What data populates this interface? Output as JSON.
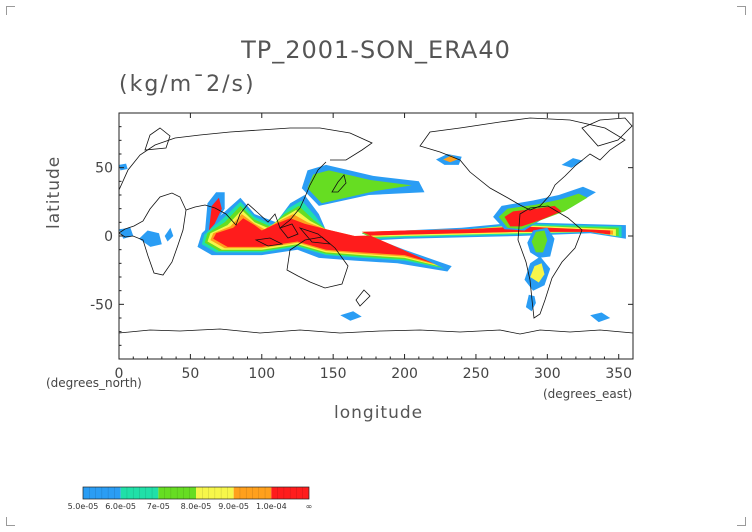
{
  "chart_data": {
    "type": "heatmap",
    "title": "TP_2001-SON_ERA40",
    "units": "(kg/m¯2/s)",
    "xlabel": "longitude",
    "ylabel": "latitude",
    "x_unit_label": "(degrees_east)",
    "y_unit_label": "(degrees_north)",
    "xlim": [
      0,
      360
    ],
    "ylim": [
      -90,
      90
    ],
    "x_ticks": [
      0,
      50,
      100,
      150,
      200,
      250,
      300,
      350
    ],
    "y_ticks": [
      -50,
      0,
      50
    ],
    "colorbar": {
      "levels": [
        "5.0e-05",
        "6.0e-05",
        "7e-05",
        "8.0e-05",
        "9.0e-05",
        "1.0e-04",
        "∞"
      ],
      "colors": [
        "#2a9df4",
        "#20e0a8",
        "#66dd22",
        "#f6f64a",
        "#ffa01c",
        "#ff1c1c"
      ]
    },
    "regions": [
      {
        "level": 1,
        "points": [
          [
            55,
            -8
          ],
          [
            65,
            -14
          ],
          [
            100,
            -14
          ],
          [
            125,
            -10
          ],
          [
            140,
            -16
          ],
          [
            165,
            -18
          ],
          [
            195,
            -20
          ],
          [
            230,
            -26
          ],
          [
            233,
            -22
          ],
          [
            200,
            -10
          ],
          [
            170,
            2
          ],
          [
            200,
            4
          ],
          [
            240,
            6
          ],
          [
            280,
            10
          ],
          [
            355,
            8
          ],
          [
            355,
            -2
          ],
          [
            330,
            2
          ],
          [
            280,
            0
          ],
          [
            200,
            -2
          ],
          [
            165,
            -4
          ],
          [
            145,
            4
          ],
          [
            140,
            16
          ],
          [
            130,
            30
          ],
          [
            120,
            24
          ],
          [
            110,
            10
          ],
          [
            95,
            16
          ],
          [
            85,
            28
          ],
          [
            70,
            14
          ],
          [
            58,
            2
          ]
        ]
      },
      {
        "level": 2,
        "points": [
          [
            58,
            -6
          ],
          [
            68,
            -12
          ],
          [
            100,
            -12
          ],
          [
            125,
            -8
          ],
          [
            145,
            -14
          ],
          [
            170,
            -16
          ],
          [
            200,
            -18
          ],
          [
            228,
            -24
          ],
          [
            198,
            -10
          ],
          [
            170,
            2
          ],
          [
            200,
            3
          ],
          [
            245,
            5
          ],
          [
            280,
            9
          ],
          [
            352,
            7
          ],
          [
            352,
            -1
          ],
          [
            330,
            3
          ],
          [
            280,
            1
          ],
          [
            200,
            -1
          ],
          [
            165,
            -3
          ],
          [
            145,
            4
          ],
          [
            138,
            14
          ],
          [
            128,
            26
          ],
          [
            118,
            20
          ],
          [
            108,
            8
          ],
          [
            95,
            14
          ],
          [
            85,
            25
          ],
          [
            72,
            12
          ],
          [
            60,
            2
          ]
        ]
      },
      {
        "level": 3,
        "points": [
          [
            60,
            -5
          ],
          [
            70,
            -11
          ],
          [
            100,
            -11
          ],
          [
            125,
            -7
          ],
          [
            145,
            -13
          ],
          [
            170,
            -15
          ],
          [
            200,
            -17
          ],
          [
            226,
            -23
          ],
          [
            196,
            -9
          ],
          [
            170,
            2
          ],
          [
            200,
            3
          ],
          [
            245,
            5
          ],
          [
            280,
            8
          ],
          [
            350,
            6
          ],
          [
            350,
            0
          ],
          [
            330,
            3
          ],
          [
            280,
            2
          ],
          [
            200,
            0
          ],
          [
            165,
            -2
          ],
          [
            145,
            5
          ],
          [
            136,
            12
          ],
          [
            126,
            22
          ],
          [
            116,
            16
          ],
          [
            106,
            7
          ],
          [
            95,
            12
          ],
          [
            85,
            22
          ],
          [
            74,
            10
          ],
          [
            62,
            2
          ]
        ]
      },
      {
        "level": 4,
        "points": [
          [
            62,
            -4
          ],
          [
            72,
            -10
          ],
          [
            100,
            -10
          ],
          [
            125,
            -6
          ],
          [
            145,
            -12
          ],
          [
            170,
            -14
          ],
          [
            200,
            -16
          ],
          [
            224,
            -22
          ],
          [
            194,
            -8
          ],
          [
            170,
            3
          ],
          [
            200,
            4
          ],
          [
            245,
            5
          ],
          [
            280,
            8
          ],
          [
            348,
            5
          ],
          [
            348,
            0
          ],
          [
            330,
            3
          ],
          [
            280,
            2
          ],
          [
            200,
            0
          ],
          [
            165,
            -1
          ],
          [
            145,
            5
          ],
          [
            134,
            11
          ],
          [
            124,
            19
          ],
          [
            114,
            13
          ],
          [
            104,
            6
          ],
          [
            95,
            10
          ],
          [
            86,
            19
          ],
          [
            76,
            8
          ],
          [
            64,
            2
          ]
        ]
      },
      {
        "level": 5,
        "points": [
          [
            64,
            -3
          ],
          [
            74,
            -9
          ],
          [
            100,
            -9
          ],
          [
            125,
            -5
          ],
          [
            145,
            -11
          ],
          [
            170,
            -13
          ],
          [
            200,
            -15
          ],
          [
            222,
            -21
          ],
          [
            192,
            -7
          ],
          [
            170,
            3
          ],
          [
            200,
            4
          ],
          [
            245,
            5
          ],
          [
            280,
            7
          ],
          [
            346,
            4
          ],
          [
            346,
            1
          ],
          [
            330,
            3
          ],
          [
            280,
            3
          ],
          [
            200,
            1
          ],
          [
            165,
            0
          ],
          [
            145,
            5
          ],
          [
            132,
            10
          ],
          [
            122,
            16
          ],
          [
            112,
            11
          ],
          [
            102,
            5
          ],
          [
            95,
            9
          ],
          [
            86,
            16
          ],
          [
            78,
            7
          ],
          [
            66,
            2
          ]
        ]
      },
      {
        "level": 6,
        "points": [
          [
            66,
            -2
          ],
          [
            76,
            -8
          ],
          [
            100,
            -8
          ],
          [
            125,
            -4
          ],
          [
            145,
            -10
          ],
          [
            170,
            -12
          ],
          [
            200,
            -14
          ],
          [
            220,
            -20
          ],
          [
            190,
            -6
          ],
          [
            170,
            3
          ],
          [
            200,
            4
          ],
          [
            245,
            5
          ],
          [
            280,
            7
          ],
          [
            344,
            4
          ],
          [
            344,
            1
          ],
          [
            330,
            3
          ],
          [
            280,
            3
          ],
          [
            200,
            1
          ],
          [
            165,
            0
          ],
          [
            145,
            5
          ],
          [
            130,
            9
          ],
          [
            120,
            13
          ],
          [
            110,
            9
          ],
          [
            100,
            4
          ],
          [
            95,
            8
          ],
          [
            87,
            13
          ],
          [
            80,
            6
          ],
          [
            68,
            2
          ]
        ]
      },
      {
        "level": 1,
        "points": [
          [
            270,
            5
          ],
          [
            262,
            14
          ],
          [
            268,
            22
          ],
          [
            290,
            26
          ],
          [
            308,
            30
          ],
          [
            325,
            36
          ],
          [
            334,
            32
          ],
          [
            315,
            20
          ],
          [
            296,
            12
          ],
          [
            284,
            4
          ]
        ]
      },
      {
        "level": 3,
        "points": [
          [
            272,
            6
          ],
          [
            266,
            14
          ],
          [
            272,
            20
          ],
          [
            292,
            23
          ],
          [
            310,
            27
          ],
          [
            322,
            31
          ],
          [
            328,
            28
          ],
          [
            312,
            18
          ],
          [
            294,
            11
          ],
          [
            282,
            5
          ]
        ]
      },
      {
        "level": 6,
        "points": [
          [
            274,
            7
          ],
          [
            270,
            14
          ],
          [
            276,
            18
          ],
          [
            292,
            20
          ],
          [
            305,
            22
          ],
          [
            310,
            18
          ],
          [
            296,
            12
          ],
          [
            282,
            7
          ]
        ]
      },
      {
        "level": 1,
        "points": [
          [
            60,
            1
          ],
          [
            62,
            24
          ],
          [
            68,
            32
          ],
          [
            74,
            32
          ],
          [
            74,
            20
          ],
          [
            68,
            10
          ]
        ]
      },
      {
        "level": 6,
        "points": [
          [
            63,
            4
          ],
          [
            65,
            22
          ],
          [
            70,
            28
          ],
          [
            72,
            20
          ],
          [
            67,
            9
          ]
        ]
      },
      {
        "level": 1,
        "points": [
          [
            140,
            22
          ],
          [
            128,
            35
          ],
          [
            132,
            48
          ],
          [
            145,
            52
          ],
          [
            178,
            44
          ],
          [
            210,
            40
          ],
          [
            214,
            32
          ],
          [
            175,
            30
          ]
        ]
      },
      {
        "level": 3,
        "points": [
          [
            142,
            24
          ],
          [
            132,
            35
          ],
          [
            136,
            45
          ],
          [
            147,
            48
          ],
          [
            176,
            41
          ],
          [
            205,
            37
          ],
          [
            180,
            33
          ]
        ]
      },
      {
        "level": 1,
        "points": [
          [
            222,
            56
          ],
          [
            230,
            60
          ],
          [
            240,
            58
          ],
          [
            238,
            52
          ],
          [
            228,
            52
          ]
        ]
      },
      {
        "level": 5,
        "points": [
          [
            227,
            56
          ],
          [
            233,
            59
          ],
          [
            237,
            56
          ],
          [
            232,
            54
          ]
        ]
      },
      {
        "level": 1,
        "points": [
          [
            284,
            -32
          ],
          [
            288,
            -20
          ],
          [
            295,
            -15
          ],
          [
            302,
            -24
          ],
          [
            298,
            -36
          ],
          [
            290,
            -40
          ]
        ]
      },
      {
        "level": 4,
        "points": [
          [
            288,
            -30
          ],
          [
            291,
            -22
          ],
          [
            296,
            -20
          ],
          [
            298,
            -28
          ],
          [
            294,
            -34
          ]
        ]
      },
      {
        "level": 1,
        "points": [
          [
            287,
            -43
          ],
          [
            285,
            -52
          ],
          [
            289,
            -55
          ],
          [
            292,
            -49
          ],
          [
            291,
            -44
          ]
        ]
      },
      {
        "level": 1,
        "points": [
          [
            286,
            -5
          ],
          [
            290,
            4
          ],
          [
            300,
            6
          ],
          [
            305,
            -2
          ],
          [
            302,
            -15
          ],
          [
            294,
            -16
          ],
          [
            288,
            -12
          ]
        ]
      },
      {
        "level": 3,
        "points": [
          [
            289,
            -4
          ],
          [
            292,
            3
          ],
          [
            298,
            4
          ],
          [
            300,
            -3
          ],
          [
            297,
            -12
          ],
          [
            292,
            -12
          ]
        ]
      },
      {
        "level": 1,
        "points": [
          [
            0,
            5
          ],
          [
            8,
            6
          ],
          [
            10,
            0
          ],
          [
            3,
            -2
          ]
        ]
      },
      {
        "level": 1,
        "points": [
          [
            14,
            -2
          ],
          [
            20,
            4
          ],
          [
            28,
            2
          ],
          [
            30,
            -6
          ],
          [
            22,
            -8
          ]
        ]
      },
      {
        "level": 1,
        "points": [
          [
            32,
            0
          ],
          [
            36,
            6
          ],
          [
            38,
            0
          ],
          [
            34,
            -4
          ]
        ]
      },
      {
        "level": 1,
        "points": [
          [
            155,
            -58
          ],
          [
            162,
            -62
          ],
          [
            170,
            -59
          ],
          [
            164,
            -55
          ]
        ]
      },
      {
        "level": 1,
        "points": [
          [
            330,
            -58
          ],
          [
            336,
            -63
          ],
          [
            344,
            -60
          ],
          [
            338,
            -56
          ]
        ]
      },
      {
        "level": 1,
        "points": [
          [
            0,
            52
          ],
          [
            5,
            53
          ],
          [
            6,
            49
          ],
          [
            1,
            48
          ]
        ]
      },
      {
        "level": 1,
        "points": [
          [
            310,
            52
          ],
          [
            318,
            57
          ],
          [
            325,
            55
          ],
          [
            317,
            50
          ]
        ]
      }
    ]
  }
}
